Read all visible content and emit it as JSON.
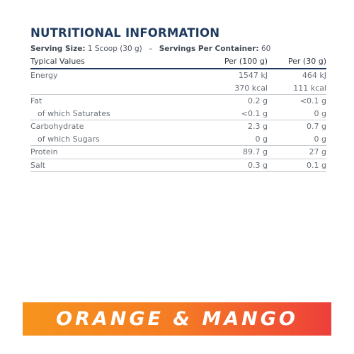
{
  "title": "NUTRITIONAL INFORMATION",
  "serving": {
    "size_label": "Serving Size:",
    "size_value": "1 Scoop (30 g)",
    "separator": "–",
    "servings_label": "Servings Per Container:",
    "servings_value": "60"
  },
  "table": {
    "headers": [
      "Typical Values",
      "Per (100 g)",
      "Per (30 g)"
    ],
    "rows": [
      {
        "label": "Energy",
        "per100": "1547 kJ",
        "per30": "464 kJ"
      },
      {
        "label": "",
        "per100": "370 kcal",
        "per30": "111 kcal"
      },
      {
        "label": "Fat",
        "per100": "0.2 g",
        "per30": "<0.1 g"
      },
      {
        "label": "of which Saturates",
        "per100": "<0.1 g",
        "per30": "0 g"
      },
      {
        "label": "Carbohydrate",
        "per100": "2.3 g",
        "per30": "0.7 g"
      },
      {
        "label": "of which Sugars",
        "per100": "0 g",
        "per30": "0 g"
      },
      {
        "label": "Protein",
        "per100": "89.7 g",
        "per30": "27 g"
      },
      {
        "label": "Salt",
        "per100": "0.3 g",
        "per30": "0.1 g"
      }
    ]
  },
  "flavour": {
    "label": "ORANGE & MANGO",
    "gradient_start": "#f7941d",
    "gradient_end": "#ee3f3a"
  },
  "colors": {
    "title": "#1f3a5f",
    "rule": "#1f3a5f",
    "text": "#6a7078"
  }
}
